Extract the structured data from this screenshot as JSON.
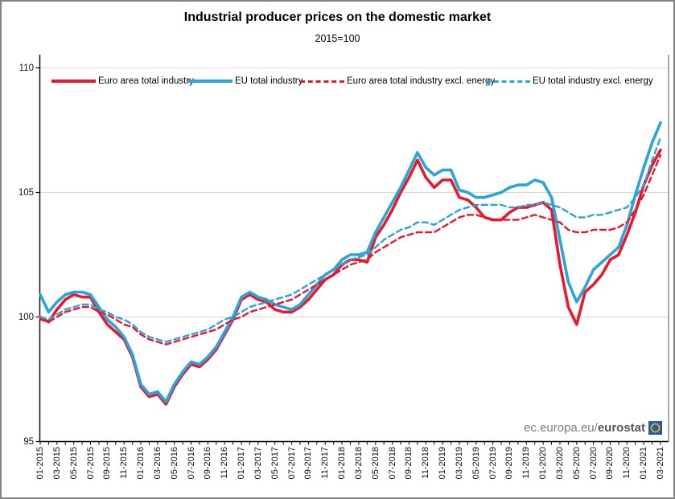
{
  "title": "Industrial producer prices on the domestic market",
  "subtitle": "2015=100",
  "watermark": {
    "prefix": "ec.europa.eu/",
    "bold": "eurostat"
  },
  "chart_data": {
    "type": "line",
    "title": "Industrial producer prices on the domestic market",
    "subtitle": "2015=100",
    "x_unit": "month",
    "x_start": "01-2015",
    "x_end": "03-2021",
    "x_tick_labels": [
      "01-2015",
      "03-2015",
      "05-2015",
      "07-2015",
      "09-2015",
      "11-2015",
      "01-2016",
      "03-2016",
      "05-2016",
      "07-2016",
      "09-2016",
      "11-2016",
      "01-2017",
      "03-2017",
      "05-2017",
      "07-2017",
      "09-2017",
      "11-2017",
      "01-2018",
      "03-2018",
      "05-2018",
      "07-2018",
      "09-2018",
      "11-2018",
      "01-2019",
      "03-2019",
      "05-2019",
      "07-2019",
      "09-2019",
      "11-2019",
      "01-2020",
      "03-2020",
      "05-2020",
      "07-2020",
      "09-2020",
      "11-2020",
      "01-2021",
      "03-2021"
    ],
    "y_ticks": [
      95,
      100,
      105,
      110
    ],
    "ylim": [
      95,
      110.5
    ],
    "grid": "horizontal",
    "grid_values": [
      100,
      105,
      110
    ],
    "legend_position": "top-inside",
    "series": [
      {
        "name": "Euro area total industry",
        "color": "#e8192c",
        "dash": "solid",
        "values": [
          100.0,
          99.8,
          100.3,
          100.7,
          100.9,
          100.8,
          100.8,
          100.2,
          99.7,
          99.4,
          99.1,
          98.4,
          97.2,
          96.8,
          96.9,
          96.5,
          97.2,
          97.7,
          98.1,
          98.0,
          98.3,
          98.7,
          99.3,
          99.9,
          100.7,
          100.9,
          100.7,
          100.6,
          100.3,
          100.2,
          100.2,
          100.4,
          100.7,
          101.1,
          101.5,
          101.7,
          102.1,
          102.3,
          102.3,
          102.2,
          103.2,
          103.7,
          104.3,
          105.0,
          105.6,
          106.3,
          105.6,
          105.2,
          105.5,
          105.5,
          104.8,
          104.7,
          104.4,
          104.0,
          103.9,
          103.9,
          104.2,
          104.4,
          104.4,
          104.5,
          104.6,
          104.3,
          102.1,
          100.4,
          99.7,
          101.0,
          101.3,
          101.7,
          102.3,
          102.5,
          103.3,
          104.2,
          105.3,
          106.1,
          106.7
        ]
      },
      {
        "name": "EU total industry",
        "color": "#29a5dc",
        "dash": "solid",
        "values": [
          100.9,
          100.2,
          100.6,
          100.9,
          101.0,
          101.0,
          100.9,
          100.4,
          99.9,
          99.6,
          99.2,
          98.5,
          97.3,
          96.9,
          97.0,
          96.6,
          97.3,
          97.8,
          98.2,
          98.1,
          98.4,
          98.8,
          99.4,
          100.0,
          100.8,
          101.0,
          100.8,
          100.7,
          100.5,
          100.4,
          100.3,
          100.5,
          100.9,
          101.3,
          101.7,
          101.9,
          102.3,
          102.5,
          102.5,
          102.6,
          103.4,
          104.0,
          104.6,
          105.2,
          105.9,
          106.6,
          106.0,
          105.7,
          105.9,
          105.9,
          105.1,
          105.0,
          104.8,
          104.8,
          104.9,
          105.0,
          105.2,
          105.3,
          105.3,
          105.5,
          105.4,
          104.8,
          103.1,
          101.4,
          100.6,
          101.2,
          101.9,
          102.2,
          102.5,
          102.8,
          103.7,
          104.9,
          106.0,
          107.0,
          107.8
        ]
      },
      {
        "name": "Euro area total industry excl. energy",
        "color": "#e8192c",
        "dash": "dashed",
        "values": [
          99.9,
          99.8,
          100.0,
          100.2,
          100.3,
          100.4,
          100.4,
          100.2,
          100.1,
          99.9,
          99.7,
          99.6,
          99.3,
          99.1,
          99.0,
          98.9,
          99.0,
          99.1,
          99.2,
          99.3,
          99.4,
          99.5,
          99.7,
          99.9,
          100.0,
          100.2,
          100.3,
          100.4,
          100.5,
          100.6,
          100.7,
          100.9,
          101.1,
          101.3,
          101.5,
          101.7,
          101.9,
          102.1,
          102.2,
          102.3,
          102.6,
          102.8,
          103.0,
          103.2,
          103.3,
          103.4,
          103.4,
          103.4,
          103.6,
          103.8,
          104.0,
          104.1,
          104.1,
          104.0,
          103.9,
          103.9,
          103.9,
          103.9,
          104.0,
          104.1,
          104.0,
          103.9,
          103.8,
          103.5,
          103.4,
          103.4,
          103.5,
          103.5,
          103.5,
          103.6,
          103.8,
          104.3,
          104.9,
          105.7,
          106.5
        ]
      },
      {
        "name": "EU total industry excl. energy",
        "color": "#29a5dc",
        "dash": "dashed",
        "values": [
          100.0,
          99.9,
          100.1,
          100.3,
          100.4,
          100.5,
          100.5,
          100.3,
          100.2,
          100.0,
          99.9,
          99.7,
          99.4,
          99.2,
          99.1,
          99.0,
          99.1,
          99.2,
          99.3,
          99.4,
          99.5,
          99.7,
          99.9,
          100.0,
          100.2,
          100.4,
          100.5,
          100.6,
          100.7,
          100.8,
          100.9,
          101.1,
          101.3,
          101.5,
          101.7,
          101.9,
          102.1,
          102.3,
          102.4,
          102.5,
          102.8,
          103.1,
          103.3,
          103.5,
          103.6,
          103.8,
          103.8,
          103.7,
          103.9,
          104.1,
          104.3,
          104.4,
          104.5,
          104.5,
          104.5,
          104.5,
          104.4,
          104.4,
          104.5,
          104.5,
          104.6,
          104.5,
          104.4,
          104.2,
          104.0,
          104.0,
          104.1,
          104.1,
          104.2,
          104.3,
          104.4,
          104.8,
          105.3,
          106.3,
          107.2
        ]
      }
    ]
  }
}
